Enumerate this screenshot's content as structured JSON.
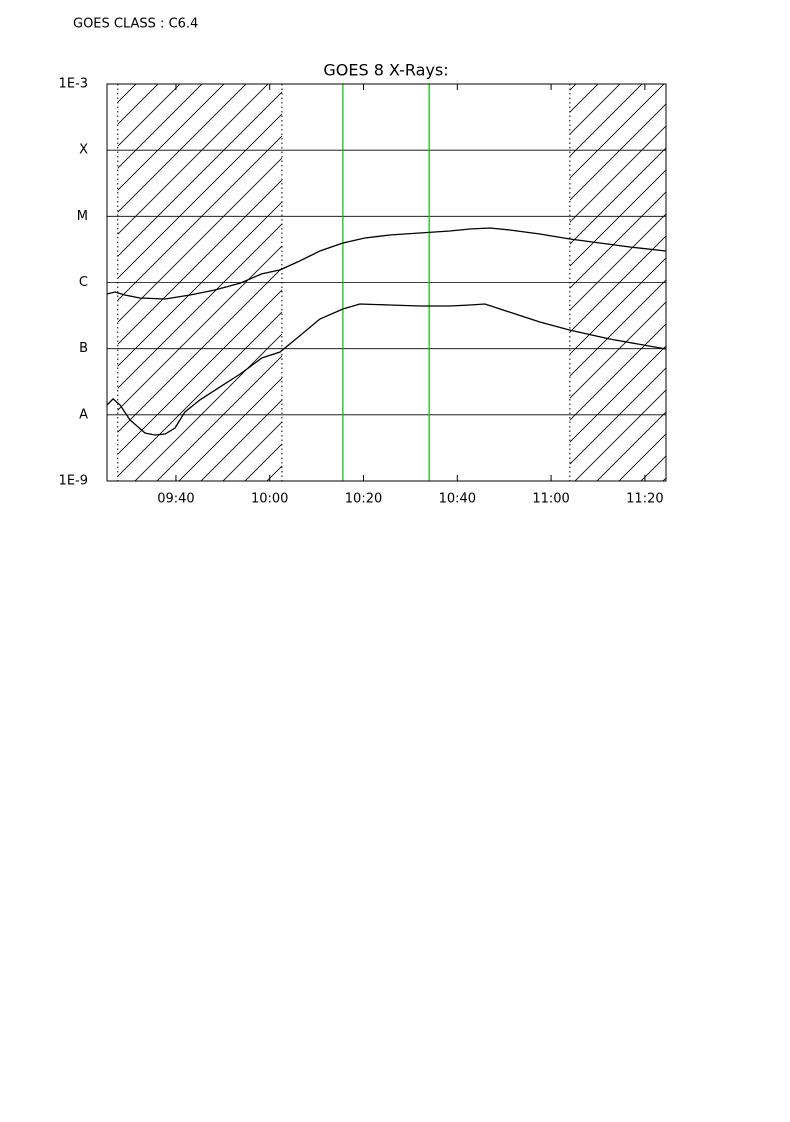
{
  "chart_data": {
    "type": "line",
    "header": "GOES CLASS : C6.4",
    "title": "GOES 8 X-Rays:",
    "log_y": true,
    "grid": true,
    "xlim": [
      565.3,
      684.5
    ],
    "ylim": [
      1e-09,
      0.001
    ],
    "xticks": [
      {
        "value": 580,
        "label": "09:40"
      },
      {
        "value": 600,
        "label": "10:00"
      },
      {
        "value": 620,
        "label": "10:20"
      },
      {
        "value": 640,
        "label": "10:40"
      },
      {
        "value": 660,
        "label": "11:00"
      },
      {
        "value": 680,
        "label": "11:20"
      }
    ],
    "yticks": [
      {
        "value": 1e-09,
        "label": "1E-9"
      },
      {
        "value": 1e-08,
        "label": "A"
      },
      {
        "value": 1e-07,
        "label": "B"
      },
      {
        "value": 1e-06,
        "label": "C"
      },
      {
        "value": 1e-05,
        "label": "M"
      },
      {
        "value": 0.0001,
        "label": "X"
      },
      {
        "value": 0.001,
        "label": "1E-3"
      }
    ],
    "hatched_intervals": [
      [
        567.6,
        602.6
      ],
      [
        664,
        684.5
      ]
    ],
    "markers": {
      "x": [
        615.6,
        634
      ],
      "color": "#00c000"
    },
    "series": [
      {
        "color": "#000000",
        "x": [
          565.3,
          567,
          569.1,
          572.3,
          577.7,
          583,
          588.3,
          593.7,
          598.3,
          602.2,
          606.4,
          610.7,
          615.6,
          620.3,
          625.6,
          632,
          638.4,
          642.7,
          647,
          651.2,
          657.6,
          664,
          670.4,
          676.8,
          684.5
        ],
        "values": [
          6.7e-07,
          7.19e-07,
          6.48e-07,
          5.83e-07,
          5.64e-07,
          6.48e-07,
          7.7e-07,
          9.8e-07,
          1.35e-06,
          1.55e-06,
          2.11e-06,
          2.99e-06,
          3.95e-06,
          4.7e-06,
          5.22e-06,
          5.6e-06,
          6e-06,
          6.44e-06,
          6.67e-06,
          6.22e-06,
          5.41e-06,
          4.55e-06,
          3.95e-06,
          3.44e-06,
          2.99e-06
        ]
      },
      {
        "color": "#000000",
        "x": [
          565.3,
          566.6,
          568.1,
          570.2,
          573.4,
          575.5,
          577.7,
          579.8,
          581.9,
          585.1,
          589.4,
          593.7,
          598.3,
          602.2,
          606.4,
          610.7,
          615.6,
          619.2,
          625.6,
          632,
          638.4,
          642.7,
          645.9,
          649.1,
          657.6,
          664,
          672.5,
          684.5
        ],
        "values": [
          1.41e-08,
          1.74e-08,
          1.41e-08,
          8.36e-09,
          5.32e-09,
          4.96e-09,
          5.14e-09,
          6.33e-09,
          1.1e-08,
          1.68e-08,
          2.64e-08,
          4.14e-08,
          7.23e-08,
          8.91e-08,
          1.56e-07,
          2.81e-07,
          3.98e-07,
          4.73e-07,
          4.57e-07,
          4.42e-07,
          4.42e-07,
          4.57e-07,
          4.73e-07,
          3.98e-07,
          2.53e-07,
          1.91e-07,
          1.4e-07,
          9.89e-08
        ]
      }
    ]
  }
}
